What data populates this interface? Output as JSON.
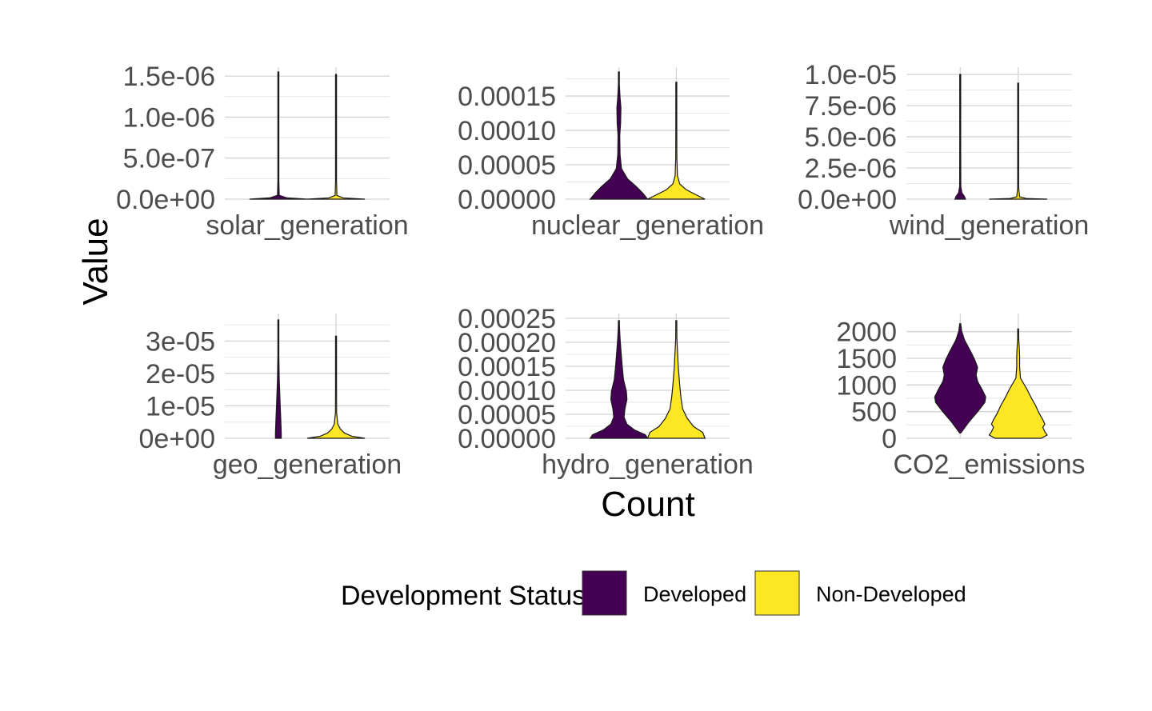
{
  "chart_data": {
    "type": "violin",
    "xlabel": "Count",
    "ylabel": "Value",
    "legend": {
      "title": "Development Status",
      "position": "bottom",
      "entries": [
        {
          "label": "Developed",
          "color": "#440154"
        },
        {
          "label": "Non-Developed",
          "color": "#FDE725"
        }
      ]
    },
    "grid": true,
    "panels": [
      {
        "label": "solar_generation",
        "ylim": [
          0,
          1.55e-06
        ],
        "yticks": [
          {
            "value": 0,
            "label": "0.0e+00"
          },
          {
            "value": 5e-07,
            "label": "5.0e-07"
          },
          {
            "value": 1e-06,
            "label": "1.0e-06"
          },
          {
            "value": 1.5e-06,
            "label": "1.5e-06"
          }
        ],
        "series": [
          {
            "group": "Developed",
            "ymin": 0,
            "ymax": 1.55e-06,
            "profile": [
              [
                0.0,
                1.0
              ],
              [
                0.01,
                0.3
              ],
              [
                0.03,
                0.03
              ],
              [
                0.15,
                0.015
              ],
              [
                0.5,
                0.01
              ],
              [
                1.0,
                0.0
              ]
            ]
          },
          {
            "group": "Non-Developed",
            "ymin": 0,
            "ymax": 1.52e-06,
            "profile": [
              [
                0.0,
                1.0
              ],
              [
                0.01,
                0.25
              ],
              [
                0.03,
                0.03
              ],
              [
                0.15,
                0.015
              ],
              [
                0.5,
                0.01
              ],
              [
                1.0,
                0.0
              ]
            ]
          }
        ]
      },
      {
        "label": "nuclear_generation",
        "ylim": [
          0,
          0.000185
        ],
        "yticks": [
          {
            "value": 0,
            "label": "0.00000"
          },
          {
            "value": 5e-05,
            "label": "0.00005"
          },
          {
            "value": 0.0001,
            "label": "0.00010"
          },
          {
            "value": 0.00015,
            "label": "0.00015"
          }
        ],
        "series": [
          {
            "group": "Developed",
            "ymin": 0,
            "ymax": 0.000185,
            "profile": [
              [
                0.0,
                1.0
              ],
              [
                0.05,
                0.82
              ],
              [
                0.1,
                0.6
              ],
              [
                0.16,
                0.3
              ],
              [
                0.24,
                0.09
              ],
              [
                0.35,
                0.04
              ],
              [
                0.5,
                0.03
              ],
              [
                0.6,
                0.06
              ],
              [
                0.72,
                0.07
              ],
              [
                0.8,
                0.04
              ],
              [
                0.9,
                0.01
              ],
              [
                1.0,
                0.0
              ]
            ]
          },
          {
            "group": "Non-Developed",
            "ymin": 0,
            "ymax": 0.00017,
            "profile": [
              [
                0.0,
                1.0
              ],
              [
                0.03,
                0.75
              ],
              [
                0.08,
                0.35
              ],
              [
                0.13,
                0.12
              ],
              [
                0.2,
                0.04
              ],
              [
                0.35,
                0.02
              ],
              [
                0.6,
                0.015
              ],
              [
                1.0,
                0.0
              ]
            ]
          }
        ]
      },
      {
        "label": "wind_generation",
        "ylim": [
          0,
          1.02e-05
        ],
        "yticks": [
          {
            "value": 0,
            "label": "0.0e+00"
          },
          {
            "value": 2.5e-06,
            "label": "2.5e-06"
          },
          {
            "value": 5e-06,
            "label": "5.0e-06"
          },
          {
            "value": 7.5e-06,
            "label": "7.5e-06"
          },
          {
            "value": 1e-05,
            "label": "1.0e-05"
          }
        ],
        "series": [
          {
            "group": "Developed",
            "ymin": 0,
            "ymax": 1e-05,
            "profile": [
              [
                0.0,
                0.18
              ],
              [
                0.02,
                0.15
              ],
              [
                0.05,
                0.06
              ],
              [
                0.1,
                0.02
              ],
              [
                0.4,
                0.01
              ],
              [
                1.0,
                0.0
              ]
            ]
          },
          {
            "group": "Non-Developed",
            "ymin": 0,
            "ymax": 9.3e-06,
            "profile": [
              [
                0.0,
                1.0
              ],
              [
                0.005,
                0.3
              ],
              [
                0.02,
                0.05
              ],
              [
                0.1,
                0.015
              ],
              [
                0.5,
                0.01
              ],
              [
                1.0,
                0.0
              ]
            ]
          }
        ]
      },
      {
        "label": "geo_generation",
        "ylim": [
          0,
          3.7e-05
        ],
        "yticks": [
          {
            "value": 0,
            "label": "0e+00"
          },
          {
            "value": 1e-05,
            "label": "1e-05"
          },
          {
            "value": 2e-05,
            "label": "2e-05"
          },
          {
            "value": 3e-05,
            "label": "3e-05"
          }
        ],
        "series": [
          {
            "group": "Developed",
            "ymin": 0,
            "ymax": 3.65e-05,
            "profile": [
              [
                0.0,
                0.1
              ],
              [
                0.05,
                0.1
              ],
              [
                0.15,
                0.085
              ],
              [
                0.3,
                0.06
              ],
              [
                0.5,
                0.03
              ],
              [
                0.7,
                0.015
              ],
              [
                1.0,
                0.0
              ]
            ]
          },
          {
            "group": "Non-Developed",
            "ymin": 0,
            "ymax": 3.15e-05,
            "profile": [
              [
                0.0,
                1.0
              ],
              [
                0.02,
                0.55
              ],
              [
                0.05,
                0.3
              ],
              [
                0.09,
                0.15
              ],
              [
                0.14,
                0.06
              ],
              [
                0.25,
                0.02
              ],
              [
                0.5,
                0.01
              ],
              [
                1.0,
                0.0
              ]
            ]
          }
        ]
      },
      {
        "label": "hydro_generation",
        "ylim": [
          0,
          0.00025
        ],
        "yticks": [
          {
            "value": 0,
            "label": "0.00000"
          },
          {
            "value": 5e-05,
            "label": "0.00005"
          },
          {
            "value": 0.0001,
            "label": "0.00010"
          },
          {
            "value": 0.00015,
            "label": "0.00015"
          },
          {
            "value": 0.0002,
            "label": "0.00020"
          },
          {
            "value": 0.00025,
            "label": "0.00025"
          }
        ],
        "series": [
          {
            "group": "Developed",
            "ymin": 0,
            "ymax": 0.000245,
            "profile": [
              [
                0.0,
                1.0
              ],
              [
                0.03,
                0.92
              ],
              [
                0.07,
                0.55
              ],
              [
                0.12,
                0.28
              ],
              [
                0.18,
                0.18
              ],
              [
                0.25,
                0.21
              ],
              [
                0.33,
                0.28
              ],
              [
                0.4,
                0.26
              ],
              [
                0.5,
                0.16
              ],
              [
                0.6,
                0.12
              ],
              [
                0.72,
                0.08
              ],
              [
                0.85,
                0.04
              ],
              [
                0.95,
                0.02
              ],
              [
                1.0,
                0.0
              ]
            ]
          },
          {
            "group": "Non-Developed",
            "ymin": 0,
            "ymax": 0.000245,
            "profile": [
              [
                0.0,
                1.0
              ],
              [
                0.05,
                0.92
              ],
              [
                0.1,
                0.6
              ],
              [
                0.17,
                0.38
              ],
              [
                0.25,
                0.22
              ],
              [
                0.35,
                0.16
              ],
              [
                0.45,
                0.12
              ],
              [
                0.6,
                0.07
              ],
              [
                0.75,
                0.04
              ],
              [
                0.85,
                0.02
              ],
              [
                1.0,
                0.0
              ]
            ]
          }
        ]
      },
      {
        "label": "CO2_emissions",
        "ylim": [
          0,
          2250
        ],
        "yticks": [
          {
            "value": 0,
            "label": "0"
          },
          {
            "value": 500,
            "label": "500"
          },
          {
            "value": 1000,
            "label": "1000"
          },
          {
            "value": 1500,
            "label": "1500"
          },
          {
            "value": 2000,
            "label": "2000"
          }
        ],
        "series": [
          {
            "group": "Developed",
            "ymin": 100,
            "ymax": 2150,
            "profile": [
              [
                0.0,
                0.02
              ],
              [
                0.1,
                0.3
              ],
              [
                0.2,
                0.62
              ],
              [
                0.28,
                0.85
              ],
              [
                0.33,
                0.88
              ],
              [
                0.4,
                0.75
              ],
              [
                0.47,
                0.6
              ],
              [
                0.53,
                0.55
              ],
              [
                0.6,
                0.6
              ],
              [
                0.67,
                0.5
              ],
              [
                0.75,
                0.35
              ],
              [
                0.85,
                0.15
              ],
              [
                0.93,
                0.05
              ],
              [
                1.0,
                0.0
              ]
            ]
          },
          {
            "group": "Non-Developed",
            "ymin": 0,
            "ymax": 2050,
            "profile": [
              [
                0.0,
                0.8
              ],
              [
                0.03,
                1.0
              ],
              [
                0.06,
                0.92
              ],
              [
                0.1,
                0.85
              ],
              [
                0.13,
                0.92
              ],
              [
                0.17,
                0.85
              ],
              [
                0.23,
                0.72
              ],
              [
                0.3,
                0.6
              ],
              [
                0.37,
                0.45
              ],
              [
                0.45,
                0.3
              ],
              [
                0.55,
                0.08
              ],
              [
                0.65,
                0.05
              ],
              [
                0.75,
                0.05
              ],
              [
                0.82,
                0.04
              ],
              [
                0.9,
                0.02
              ],
              [
                1.0,
                0.0
              ]
            ]
          }
        ]
      }
    ]
  }
}
